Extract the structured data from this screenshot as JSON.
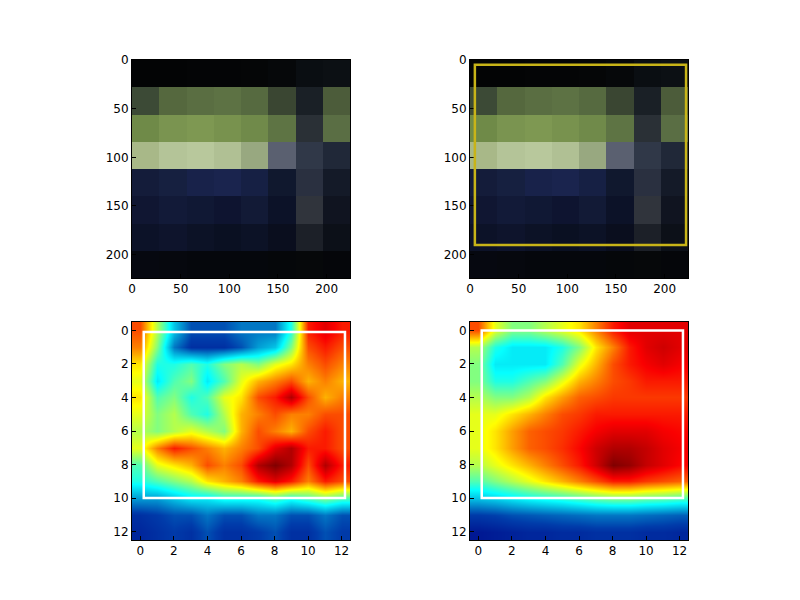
{
  "chart_data": [
    {
      "type": "image",
      "pixels": [
        [
          "#030405",
          "#030405",
          "#040506",
          "#040506",
          "#050607",
          "#06080a",
          "#0a0e12",
          "#0c1014"
        ],
        [
          "#3c4a36",
          "#55683e",
          "#5a6e42",
          "#5d7244",
          "#566a40",
          "#3a4632",
          "#1a2026",
          "#4c5c3a"
        ],
        [
          "#6f8a48",
          "#7a9450",
          "#7e9852",
          "#78924e",
          "#708a4a",
          "#5e7444",
          "#2a3036",
          "#5a6e44"
        ],
        [
          "#a8b888",
          "#b4c498",
          "#b8c89c",
          "#b0c094",
          "#98a880",
          "#5a6070",
          "#303848",
          "#202838"
        ],
        [
          "#141c3a",
          "#162040",
          "#18224a",
          "#1a244e",
          "#162044",
          "#10182e",
          "#2a3040",
          "#141a28"
        ],
        [
          "#101632",
          "#121a38",
          "#101834",
          "#0e1430",
          "#121a36",
          "#0c1228",
          "#30343c",
          "#101420"
        ],
        [
          "#0c1228",
          "#0e142c",
          "#0c1226",
          "#0a1022",
          "#0c1226",
          "#0a0e1e",
          "#1c2028",
          "#0c1018"
        ],
        [
          "#060810",
          "#06080e",
          "#05070c",
          "#05070c",
          "#05070c",
          "#05070a",
          "#06080a",
          "#05060a"
        ]
      ],
      "xlim": [
        0,
        224
      ],
      "ylim": [
        224,
        0
      ],
      "xticks": [
        0,
        50,
        100,
        150,
        200
      ],
      "yticks": [
        0,
        50,
        100,
        150,
        200
      ]
    },
    {
      "type": "image",
      "pixels": [
        [
          "#030405",
          "#030405",
          "#040506",
          "#040506",
          "#050607",
          "#06080a",
          "#0a0e12",
          "#0c1014"
        ],
        [
          "#3c4a36",
          "#55683e",
          "#5a6e42",
          "#5d7244",
          "#566a40",
          "#3a4632",
          "#1a2026",
          "#4c5c3a"
        ],
        [
          "#6f8a48",
          "#7a9450",
          "#7e9852",
          "#78924e",
          "#708a4a",
          "#5e7444",
          "#2a3036",
          "#5a6e44"
        ],
        [
          "#a8b888",
          "#b4c498",
          "#b8c89c",
          "#b0c094",
          "#98a880",
          "#5a6070",
          "#303848",
          "#202838"
        ],
        [
          "#141c3a",
          "#162040",
          "#18224a",
          "#1a244e",
          "#162044",
          "#10182e",
          "#2a3040",
          "#141a28"
        ],
        [
          "#101632",
          "#121a38",
          "#101834",
          "#0e1430",
          "#121a36",
          "#0c1228",
          "#30343c",
          "#101420"
        ],
        [
          "#0c1228",
          "#0e142c",
          "#0c1226",
          "#0a1022",
          "#0c1226",
          "#0a0e1e",
          "#1c2028",
          "#0c1018"
        ],
        [
          "#060810",
          "#06080e",
          "#05070c",
          "#05070c",
          "#05070c",
          "#05070a",
          "#06080a",
          "#05060a"
        ]
      ],
      "xlim": [
        0,
        224
      ],
      "ylim": [
        224,
        0
      ],
      "xticks": [
        0,
        50,
        100,
        150,
        200
      ],
      "yticks": [
        0,
        50,
        100,
        150,
        200
      ],
      "box": {
        "x": [
          5,
          222
        ],
        "y": [
          5,
          190
        ],
        "color": "#c8b418"
      }
    },
    {
      "type": "heatmap",
      "color": "Jet",
      "zlim": [
        0,
        1
      ],
      "cells": [
        [
          0.8,
          0.55,
          0.3,
          0.15,
          0.15,
          0.15,
          0.2,
          0.2,
          0.2,
          0.4,
          0.85,
          0.9,
          0.85
        ],
        [
          0.75,
          0.5,
          0.2,
          0.1,
          0.1,
          0.1,
          0.15,
          0.25,
          0.3,
          0.5,
          0.8,
          0.85,
          0.8
        ],
        [
          0.65,
          0.4,
          0.4,
          0.45,
          0.4,
          0.5,
          0.55,
          0.5,
          0.6,
          0.65,
          0.75,
          0.8,
          0.75
        ],
        [
          0.6,
          0.35,
          0.45,
          0.5,
          0.35,
          0.45,
          0.6,
          0.7,
          0.75,
          0.8,
          0.7,
          0.75,
          0.7
        ],
        [
          0.65,
          0.45,
          0.5,
          0.4,
          0.45,
          0.6,
          0.65,
          0.8,
          0.85,
          0.95,
          0.8,
          0.7,
          0.75
        ],
        [
          0.6,
          0.5,
          0.55,
          0.45,
          0.4,
          0.55,
          0.7,
          0.75,
          0.8,
          0.75,
          0.75,
          0.8,
          0.8
        ],
        [
          0.55,
          0.5,
          0.55,
          0.6,
          0.55,
          0.5,
          0.7,
          0.8,
          0.75,
          0.7,
          0.8,
          0.85,
          0.8
        ],
        [
          0.6,
          0.75,
          0.85,
          0.8,
          0.75,
          0.7,
          0.75,
          0.8,
          0.9,
          0.95,
          0.85,
          0.85,
          0.8
        ],
        [
          0.45,
          0.6,
          0.65,
          0.7,
          0.8,
          0.75,
          0.8,
          0.95,
          1.0,
          0.95,
          0.8,
          0.95,
          0.85
        ],
        [
          0.4,
          0.45,
          0.5,
          0.55,
          0.65,
          0.7,
          0.75,
          0.85,
          0.9,
          0.85,
          0.75,
          0.85,
          0.8
        ],
        [
          0.25,
          0.25,
          0.3,
          0.35,
          0.35,
          0.4,
          0.4,
          0.4,
          0.45,
          0.4,
          0.45,
          0.5,
          0.45
        ],
        [
          0.1,
          0.12,
          0.15,
          0.15,
          0.2,
          0.15,
          0.15,
          0.2,
          0.2,
          0.15,
          0.15,
          0.2,
          0.15
        ],
        [
          0.08,
          0.1,
          0.12,
          0.1,
          0.15,
          0.1,
          0.1,
          0.12,
          0.15,
          0.1,
          0.1,
          0.15,
          0.12
        ]
      ],
      "xlim": [
        -0.5,
        12.5
      ],
      "ylim": [
        12.5,
        -0.5
      ],
      "xticks": [
        0,
        2,
        4,
        6,
        8,
        10,
        12
      ],
      "yticks": [
        0,
        2,
        4,
        6,
        8,
        10,
        12
      ],
      "box": {
        "x": [
          0.2,
          12.2
        ],
        "y": [
          0.1,
          10
        ],
        "color": "#ffffff"
      }
    },
    {
      "type": "heatmap",
      "color": "Jet",
      "zlim": [
        0,
        1
      ],
      "cells": [
        [
          0.8,
          0.6,
          0.5,
          0.5,
          0.55,
          0.6,
          0.65,
          0.75,
          0.85,
          0.9,
          0.9,
          0.9,
          0.9
        ],
        [
          0.55,
          0.4,
          0.35,
          0.35,
          0.35,
          0.4,
          0.5,
          0.65,
          0.75,
          0.85,
          0.9,
          0.92,
          0.9
        ],
        [
          0.5,
          0.35,
          0.35,
          0.35,
          0.35,
          0.45,
          0.6,
          0.7,
          0.8,
          0.85,
          0.88,
          0.9,
          0.88
        ],
        [
          0.5,
          0.4,
          0.4,
          0.45,
          0.5,
          0.6,
          0.7,
          0.75,
          0.8,
          0.82,
          0.85,
          0.85,
          0.85
        ],
        [
          0.55,
          0.5,
          0.5,
          0.55,
          0.65,
          0.72,
          0.78,
          0.8,
          0.82,
          0.82,
          0.82,
          0.82,
          0.82
        ],
        [
          0.6,
          0.6,
          0.65,
          0.7,
          0.75,
          0.8,
          0.82,
          0.85,
          0.85,
          0.85,
          0.85,
          0.85,
          0.85
        ],
        [
          0.6,
          0.65,
          0.72,
          0.78,
          0.8,
          0.82,
          0.85,
          0.88,
          0.9,
          0.9,
          0.9,
          0.88,
          0.87
        ],
        [
          0.6,
          0.65,
          0.72,
          0.78,
          0.8,
          0.83,
          0.87,
          0.92,
          0.95,
          0.95,
          0.93,
          0.9,
          0.88
        ],
        [
          0.55,
          0.6,
          0.65,
          0.7,
          0.75,
          0.8,
          0.85,
          0.92,
          1.0,
          0.98,
          0.93,
          0.9,
          0.87
        ],
        [
          0.45,
          0.5,
          0.55,
          0.6,
          0.65,
          0.7,
          0.75,
          0.8,
          0.85,
          0.85,
          0.82,
          0.8,
          0.78
        ],
        [
          0.3,
          0.32,
          0.35,
          0.38,
          0.4,
          0.42,
          0.45,
          0.48,
          0.5,
          0.5,
          0.48,
          0.47,
          0.45
        ],
        [
          0.12,
          0.13,
          0.15,
          0.16,
          0.17,
          0.18,
          0.19,
          0.2,
          0.2,
          0.2,
          0.19,
          0.18,
          0.17
        ],
        [
          0.05,
          0.06,
          0.07,
          0.08,
          0.08,
          0.09,
          0.09,
          0.1,
          0.1,
          0.1,
          0.09,
          0.09,
          0.08
        ]
      ],
      "xlim": [
        -0.5,
        12.5
      ],
      "ylim": [
        12.5,
        -0.5
      ],
      "xticks": [
        0,
        2,
        4,
        6,
        8,
        10,
        12
      ],
      "yticks": [
        0,
        2,
        4,
        6,
        8,
        10,
        12
      ],
      "box": {
        "x": [
          0.2,
          12.2
        ],
        "y": [
          0,
          10
        ],
        "color": "#ffffff"
      }
    }
  ]
}
